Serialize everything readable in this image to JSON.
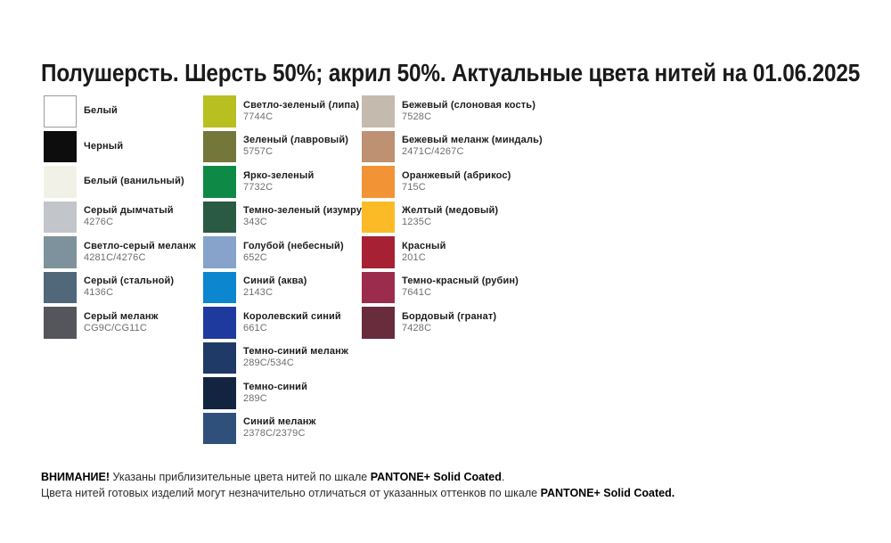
{
  "title": "Полушерсть. Шерсть 50%; акрил 50%. Актуальные цвета нитей на 01.06.2025",
  "columns": [
    {
      "items": [
        {
          "name": "Белый",
          "code": "",
          "color": "#ffffff",
          "border": true
        },
        {
          "name": "Черный",
          "code": "",
          "color": "#0d0d0d",
          "border": false
        },
        {
          "name": "Белый (ванильный)",
          "code": "",
          "color": "#f2f1e8",
          "border": false
        },
        {
          "name": "Серый дымчатый",
          "code": "4276C",
          "color": "#c2c6ca",
          "border": false
        },
        {
          "name": "Светло-серый меланж",
          "code": "4281C/4276C",
          "color": "#7e929e",
          "border": false
        },
        {
          "name": "Серый (стальной)",
          "code": "4136C",
          "color": "#51677a",
          "border": false
        },
        {
          "name": "Серый меланж",
          "code": "CG9C/CG11C",
          "color": "#54565b",
          "border": false
        }
      ]
    },
    {
      "items": [
        {
          "name": "Светло-зеленый (липа)",
          "code": "7744C",
          "color": "#b8bf20",
          "border": false
        },
        {
          "name": "Зеленый (лавровый)",
          "code": "5757C",
          "color": "#73783a",
          "border": false
        },
        {
          "name": "Ярко-зеленый",
          "code": "7732C",
          "color": "#0e8a46",
          "border": false
        },
        {
          "name": "Темно-зеленый (изумруд)",
          "code": "343C",
          "color": "#2a5a43",
          "border": false
        },
        {
          "name": "Голубой (небесный)",
          "code": "652C",
          "color": "#87a3cb",
          "border": false
        },
        {
          "name": "Синий (аква)",
          "code": "2143C",
          "color": "#0b86cf",
          "border": false
        },
        {
          "name": "Королевский синий",
          "code": "661C",
          "color": "#1e3a9e",
          "border": false
        },
        {
          "name": "Темно-синий меланж",
          "code": "289C/534C",
          "color": "#1f3a66",
          "border": false
        },
        {
          "name": "Темно-синий",
          "code": "289C",
          "color": "#122440",
          "border": false
        },
        {
          "name": "Синий меланж",
          "code": "2378C/2379C",
          "color": "#30507c",
          "border": false
        }
      ]
    },
    {
      "items": [
        {
          "name": "Бежевый (слоновая кость)",
          "code": "7528C",
          "color": "#c4bbae",
          "border": false
        },
        {
          "name": "Бежевый меланж (миндаль)",
          "code": "2471C/4267C",
          "color": "#bd9171",
          "border": false
        },
        {
          "name": "Оранжевый (абрикос)",
          "code": "715C",
          "color": "#f29335",
          "border": false
        },
        {
          "name": "Желтый (медовый)",
          "code": "1235C",
          "color": "#fbbb27",
          "border": false
        },
        {
          "name": "Красный",
          "code": "201C",
          "color": "#a72134",
          "border": false
        },
        {
          "name": "Темно-красный (рубин)",
          "code": "7641C",
          "color": "#9c2c4e",
          "border": false
        },
        {
          "name": "Бордовый (гранат)",
          "code": "7428C",
          "color": "#692c3d",
          "border": false
        }
      ]
    }
  ],
  "footer": {
    "warning_label": "ВНИМАНИЕ!",
    "line1_text": " Указаны приблизительные цвета нитей по шкале ",
    "line1_scale": "PANTONE+ Solid Coated",
    "line1_period": ".",
    "line2_text": "Цвета нитей готовых изделий могут незначительно отличаться от указанных оттенков по шкале ",
    "line2_scale": "PANTONE+ Solid Coated."
  }
}
